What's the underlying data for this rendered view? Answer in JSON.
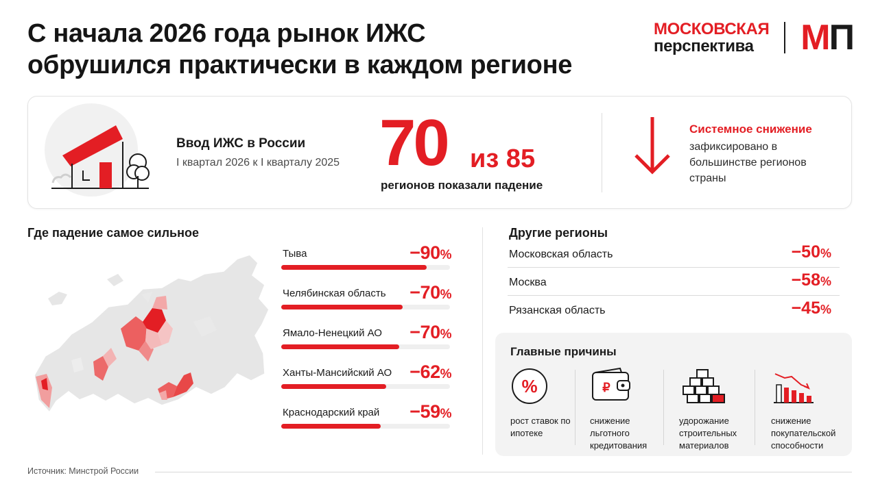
{
  "header": {
    "title_line1": "С начала 2026 года рынок ИЖС",
    "title_line2": "обрушился практически в каждом регионе"
  },
  "logo": {
    "line1": "МОСКОВСКАЯ",
    "line2": "перспектива",
    "mark_m": "М",
    "mark_p": "П"
  },
  "summary": {
    "label": "Ввод ИЖС в России",
    "period": "I квартал 2026 к I кварталу 2025",
    "count": "70",
    "of_total": "из 85",
    "caption": "регионов показали падение",
    "trend_title": "Системное снижение",
    "trend_text": "зафиксировано в большинстве регионов страны"
  },
  "strongest": {
    "heading": "Где падение самое сильное",
    "items": [
      {
        "name": "Тыва",
        "value": "−90",
        "unit": "%",
        "fill": 0.86
      },
      {
        "name": "Челябинская область",
        "value": "−70",
        "unit": "%",
        "fill": 0.72
      },
      {
        "name": "Ямало-Ненецкий АО",
        "value": "−70",
        "unit": "%",
        "fill": 0.7
      },
      {
        "name": "Ханты-Мансийский АО",
        "value": "−62",
        "unit": "%",
        "fill": 0.62
      },
      {
        "name": "Краснодарский край",
        "value": "−59",
        "unit": "%",
        "fill": 0.59
      }
    ]
  },
  "other": {
    "heading": "Другие регионы",
    "items": [
      {
        "name": "Московская область",
        "value": "−50",
        "unit": "%"
      },
      {
        "name": "Москва",
        "value": "−58",
        "unit": "%"
      },
      {
        "name": "Рязанская область",
        "value": "−45",
        "unit": "%"
      }
    ]
  },
  "reasons": {
    "heading": "Главные причины",
    "items": [
      {
        "text": "рост ставок по ипотеке",
        "icon": "percent-icon"
      },
      {
        "text": "снижение льготного кредитования",
        "icon": "wallet-icon"
      },
      {
        "text": "удорожание строительных материалов",
        "icon": "bricks-icon"
      },
      {
        "text": "снижение покупательской способности",
        "icon": "declining-chart-icon"
      }
    ]
  },
  "source": "Источник: Минстрой России",
  "colors": {
    "accent": "#e31e24",
    "text": "#1a1a1a",
    "panel": "#f3f3f3",
    "map_base": "#e6e6e6"
  }
}
